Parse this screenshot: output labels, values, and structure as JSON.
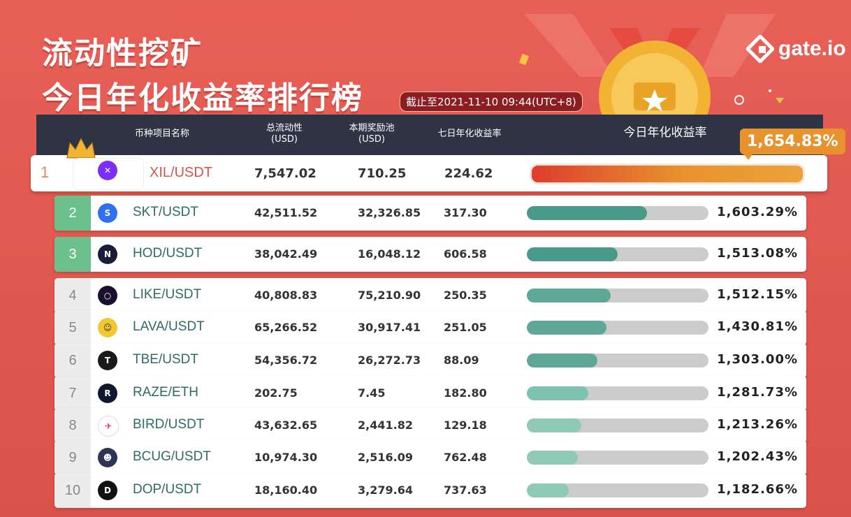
{
  "title_line1": "流动性挖矿",
  "title_line2": "今日年化收益率排行榜",
  "as_of": "截止至2021-11-10 09:44(UTC+8)",
  "brand": "gate.io",
  "headers": {
    "pair": "币种项目名称",
    "liquidity": "总流动性",
    "liquidity_unit": "(USD)",
    "pool": "本期奖励池",
    "pool_unit": "(USD)",
    "apy7": "七日年化收益率",
    "today": "今日年化收益率"
  },
  "colors": {
    "gold_bar": "#e8922e",
    "red_bar": "#de3c2f",
    "dark_teal": "#4a9a8b",
    "light_teal": "#7ec3b1"
  },
  "rows": [
    {
      "rank": "1",
      "pair": "XIL/USDT",
      "liquidity": "7,547.02",
      "pool": "710.25",
      "apy7": "224.62",
      "today": "1,654.83%",
      "fill": 1.0,
      "icon": "xil-icon",
      "icon_bg": "#7b2ff7",
      "glyph": "✕"
    },
    {
      "rank": "2",
      "pair": "SKT/USDT",
      "liquidity": "42,511.52",
      "pool": "32,326.85",
      "apy7": "317.30",
      "today": "1,603.29%",
      "fill": 0.66,
      "icon": "skt-icon",
      "icon_bg": "#2f6ff0",
      "glyph": "S"
    },
    {
      "rank": "3",
      "pair": "HOD/USDT",
      "liquidity": "38,042.49",
      "pool": "16,048.12",
      "apy7": "606.58",
      "today": "1,513.08%",
      "fill": 0.5,
      "icon": "hod-icon",
      "icon_bg": "#1c1c3a",
      "glyph": "N"
    },
    {
      "rank": "4",
      "pair": "LIKE/USDT",
      "liquidity": "40,808.83",
      "pool": "75,210.90",
      "apy7": "250.35",
      "today": "1,512.15%",
      "fill": 0.46,
      "icon": "like-icon",
      "icon_bg": "#1a0f2e",
      "glyph": "○"
    },
    {
      "rank": "5",
      "pair": "LAVA/USDT",
      "liquidity": "65,266.52",
      "pool": "30,917.41",
      "apy7": "251.05",
      "today": "1,430.81%",
      "fill": 0.44,
      "icon": "lava-icon",
      "icon_bg": "#f2c832",
      "glyph": "☺"
    },
    {
      "rank": "6",
      "pair": "TBE/USDT",
      "liquidity": "54,356.72",
      "pool": "26,272.73",
      "apy7": "88.09",
      "today": "1,303.00%",
      "fill": 0.39,
      "icon": "tbe-icon",
      "icon_bg": "#1a1a1a",
      "glyph": "T"
    },
    {
      "rank": "7",
      "pair": "RAZE/ETH",
      "liquidity": "202.75",
      "pool": "7.45",
      "apy7": "182.80",
      "today": "1,281.73%",
      "fill": 0.34,
      "icon": "raze-icon",
      "icon_bg": "#101830",
      "glyph": "R"
    },
    {
      "rank": "8",
      "pair": "BIRD/USDT",
      "liquidity": "43,632.65",
      "pool": "2,441.82",
      "apy7": "129.18",
      "today": "1,213.26%",
      "fill": 0.3,
      "icon": "bird-icon",
      "icon_bg": "#ffffff",
      "glyph": "✈"
    },
    {
      "rank": "9",
      "pair": "BCUG/USDT",
      "liquidity": "10,974.30",
      "pool": "2,516.09",
      "apy7": "762.48",
      "today": "1,202.43%",
      "fill": 0.28,
      "icon": "bcug-icon",
      "icon_bg": "#2d3550",
      "glyph": "☻"
    },
    {
      "rank": "10",
      "pair": "DOP/USDT",
      "liquidity": "18,160.40",
      "pool": "3,279.64",
      "apy7": "737.63",
      "today": "1,182.66%",
      "fill": 0.23,
      "icon": "dop-icon",
      "icon_bg": "#111111",
      "glyph": "D"
    }
  ]
}
